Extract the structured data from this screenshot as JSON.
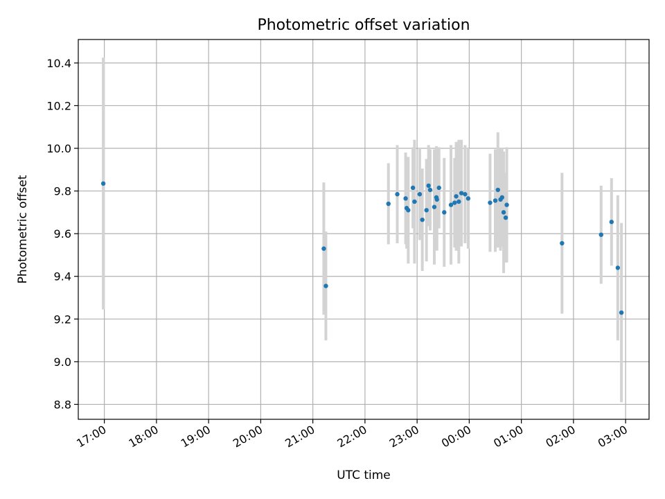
{
  "chart_data": {
    "type": "scatter",
    "title": "Photometric offset variation",
    "xlabel": "UTC time",
    "ylabel": "Photometric offset",
    "x_unit": "hours (UTC, continuing past midnight)",
    "xlim": [
      16.5,
      27.45
    ],
    "ylim": [
      8.73,
      10.51
    ],
    "grid": true,
    "x_ticks": [
      {
        "value": 17,
        "label": "17:00"
      },
      {
        "value": 18,
        "label": "18:00"
      },
      {
        "value": 19,
        "label": "19:00"
      },
      {
        "value": 20,
        "label": "20:00"
      },
      {
        "value": 21,
        "label": "21:00"
      },
      {
        "value": 22,
        "label": "22:00"
      },
      {
        "value": 23,
        "label": "23:00"
      },
      {
        "value": 24,
        "label": "00:00"
      },
      {
        "value": 25,
        "label": "01:00"
      },
      {
        "value": 26,
        "label": "02:00"
      },
      {
        "value": 27,
        "label": "03:00"
      }
    ],
    "y_ticks": [
      {
        "value": 8.8,
        "label": "8.8"
      },
      {
        "value": 9.0,
        "label": "9.0"
      },
      {
        "value": 9.2,
        "label": "9.2"
      },
      {
        "value": 9.4,
        "label": "9.4"
      },
      {
        "value": 9.6,
        "label": "9.6"
      },
      {
        "value": 9.8,
        "label": "9.8"
      },
      {
        "value": 10.0,
        "label": "10.0"
      },
      {
        "value": 10.2,
        "label": "10.2"
      },
      {
        "value": 10.4,
        "label": "10.4"
      }
    ],
    "colors": {
      "point": "#1f77b4",
      "errorbar": "#d3d3d3"
    },
    "points": [
      {
        "x": 16.98,
        "y": 9.835,
        "err": 0.59
      },
      {
        "x": 21.21,
        "y": 9.53,
        "err": 0.31
      },
      {
        "x": 21.25,
        "y": 9.355,
        "err": 0.255
      },
      {
        "x": 22.45,
        "y": 9.74,
        "err": 0.19
      },
      {
        "x": 22.62,
        "y": 9.785,
        "err": 0.23
      },
      {
        "x": 22.78,
        "y": 9.765,
        "err": 0.215
      },
      {
        "x": 22.8,
        "y": 9.72,
        "err": 0.19
      },
      {
        "x": 22.83,
        "y": 9.71,
        "err": 0.25
      },
      {
        "x": 22.92,
        "y": 9.815,
        "err": 0.19
      },
      {
        "x": 22.95,
        "y": 9.75,
        "err": 0.29
      },
      {
        "x": 23.05,
        "y": 9.785,
        "err": 0.215
      },
      {
        "x": 23.1,
        "y": 9.665,
        "err": 0.24
      },
      {
        "x": 23.18,
        "y": 9.71,
        "err": 0.24
      },
      {
        "x": 23.22,
        "y": 9.825,
        "err": 0.19
      },
      {
        "x": 23.25,
        "y": 9.805,
        "err": 0.19
      },
      {
        "x": 23.33,
        "y": 9.725,
        "err": 0.27
      },
      {
        "x": 23.37,
        "y": 9.77,
        "err": 0.24
      },
      {
        "x": 23.38,
        "y": 9.76,
        "err": 0.24
      },
      {
        "x": 23.42,
        "y": 9.815,
        "err": 0.19
      },
      {
        "x": 23.52,
        "y": 9.7,
        "err": 0.255
      },
      {
        "x": 23.65,
        "y": 9.735,
        "err": 0.28
      },
      {
        "x": 23.72,
        "y": 9.745,
        "err": 0.21
      },
      {
        "x": 23.75,
        "y": 9.775,
        "err": 0.255
      },
      {
        "x": 23.8,
        "y": 9.75,
        "err": 0.29
      },
      {
        "x": 23.85,
        "y": 9.79,
        "err": 0.25
      },
      {
        "x": 23.92,
        "y": 9.785,
        "err": 0.23
      },
      {
        "x": 23.98,
        "y": 9.765,
        "err": 0.235
      },
      {
        "x": 24.4,
        "y": 9.745,
        "err": 0.23
      },
      {
        "x": 24.5,
        "y": 9.755,
        "err": 0.24
      },
      {
        "x": 24.55,
        "y": 9.805,
        "err": 0.27
      },
      {
        "x": 24.6,
        "y": 9.76,
        "err": 0.24
      },
      {
        "x": 24.63,
        "y": 9.77,
        "err": 0.23
      },
      {
        "x": 24.66,
        "y": 9.7,
        "err": 0.285
      },
      {
        "x": 24.7,
        "y": 9.675,
        "err": 0.21
      },
      {
        "x": 24.72,
        "y": 9.735,
        "err": 0.27
      },
      {
        "x": 25.78,
        "y": 9.555,
        "err": 0.33
      },
      {
        "x": 26.53,
        "y": 9.595,
        "err": 0.23
      },
      {
        "x": 26.73,
        "y": 9.655,
        "err": 0.205
      },
      {
        "x": 26.85,
        "y": 9.44,
        "err": 0.34
      },
      {
        "x": 26.92,
        "y": 9.23,
        "err": 0.42
      }
    ]
  }
}
